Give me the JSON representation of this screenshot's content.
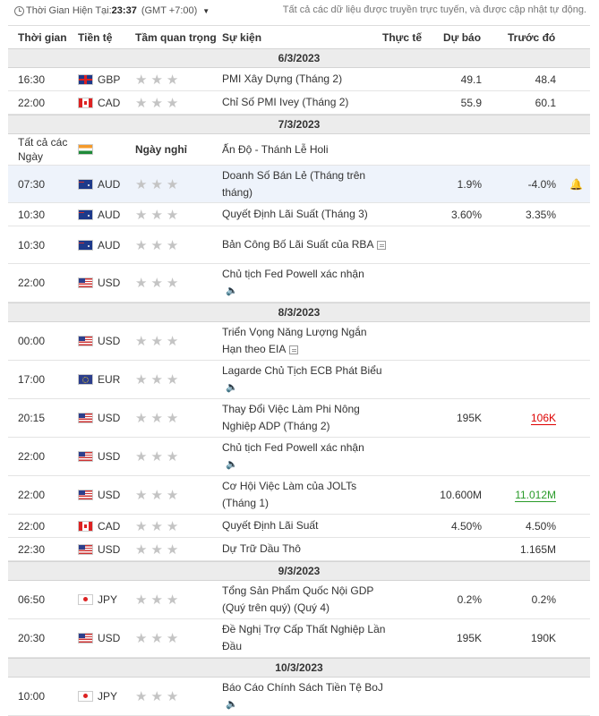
{
  "header": {
    "time_label": "Thời Gian Hiện Tại:",
    "time_value": "23:37",
    "timezone": "(GMT +7:00)",
    "note": "Tất cả các dữ liệu được truyền trực tuyến, và được cập nhật tự động."
  },
  "columns": {
    "time": "Thời gian",
    "currency": "Tiền tệ",
    "importance": "Tầm quan trọng",
    "event": "Sự kiện",
    "actual": "Thực tế",
    "forecast": "Dự báo",
    "previous": "Trước đó"
  },
  "rows": [
    {
      "type": "date",
      "label": "6/3/2023"
    },
    {
      "type": "event",
      "time": "16:30",
      "flag": "gb",
      "currency": "GBP",
      "event": "PMI Xây Dựng (Tháng 2)",
      "forecast": "49.1",
      "previous": "48.4"
    },
    {
      "type": "event",
      "time": "22:00",
      "flag": "ca",
      "currency": "CAD",
      "event": "Chỉ Số PMI Ivey (Tháng 2)",
      "forecast": "55.9",
      "previous": "60.1"
    },
    {
      "type": "date",
      "label": "7/3/2023"
    },
    {
      "type": "event",
      "time": "Tất cả các Ngày",
      "flag": "in",
      "currency": "",
      "holiday": "Ngày nghỉ",
      "event": "Ấn Độ - Thánh Lễ Holi",
      "h": 35
    },
    {
      "type": "event",
      "time": "07:30",
      "flag": "au",
      "currency": "AUD",
      "event": "Doanh Số Bán Lẻ (Tháng trên tháng)",
      "forecast": "1.9%",
      "previous": "-4.0%",
      "bell": true,
      "highlight": true,
      "h": 42
    },
    {
      "type": "event",
      "time": "10:30",
      "flag": "au",
      "currency": "AUD",
      "event": "Quyết Định Lãi Suất (Tháng 3)",
      "forecast": "3.60%",
      "previous": "3.35%"
    },
    {
      "type": "event",
      "time": "10:30",
      "flag": "au",
      "currency": "AUD",
      "event": "Bản Công Bố Lãi Suất của RBA",
      "icon": "doc",
      "h": 42
    },
    {
      "type": "event",
      "time": "22:00",
      "flag": "us",
      "currency": "USD",
      "event": "Chủ tịch Fed Powell xác nhận",
      "icon": "speaker",
      "h": 43
    },
    {
      "type": "date",
      "label": "8/3/2023"
    },
    {
      "type": "event",
      "time": "00:00",
      "flag": "us",
      "currency": "USD",
      "event": "Triển Vọng Năng Lượng Ngắn Hạn theo EIA",
      "icon": "doc",
      "h": 43
    },
    {
      "type": "event",
      "time": "17:00",
      "flag": "eu",
      "currency": "EUR",
      "event": "Lagarde Chủ Tịch ECB Phát Biểu",
      "icon": "speaker",
      "h": 43
    },
    {
      "type": "event",
      "time": "20:15",
      "flag": "us",
      "currency": "USD",
      "event": "Thay Đổi Việc Làm Phi Nông Nghiệp ADP (Tháng 2)",
      "forecast": "195K",
      "previous": "106K",
      "prevColor": "red",
      "h": 43
    },
    {
      "type": "event",
      "time": "22:00",
      "flag": "us",
      "currency": "USD",
      "event": "Chủ tịch Fed Powell xác nhận",
      "icon": "speaker",
      "h": 43
    },
    {
      "type": "event",
      "time": "22:00",
      "flag": "us",
      "currency": "USD",
      "event": "Cơ Hội Việc Làm của JOLTs (Tháng 1)",
      "forecast": "10.600M",
      "previous": "11.012M",
      "prevColor": "green",
      "h": 43
    },
    {
      "type": "event",
      "time": "22:00",
      "flag": "ca",
      "currency": "CAD",
      "event": "Quyết Định Lãi Suất",
      "forecast": "4.50%",
      "previous": "4.50%"
    },
    {
      "type": "event",
      "time": "22:30",
      "flag": "us",
      "currency": "USD",
      "event": "Dự Trữ Dầu Thô",
      "previous": "1.165M"
    },
    {
      "type": "date",
      "label": "9/3/2023"
    },
    {
      "type": "event",
      "time": "06:50",
      "flag": "jp",
      "currency": "JPY",
      "event": "Tổng Sản Phẩm Quốc Nội GDP (Quý trên quý) (Quý 4)",
      "forecast": "0.2%",
      "previous": "0.2%",
      "h": 43
    },
    {
      "type": "event",
      "time": "20:30",
      "flag": "us",
      "currency": "USD",
      "event": "Đề Nghị Trợ Cấp Thất Nghiệp Lần Đầu",
      "forecast": "195K",
      "previous": "190K",
      "h": 43
    },
    {
      "type": "date",
      "label": "10/3/2023"
    },
    {
      "type": "event",
      "time": "10:00",
      "flag": "jp",
      "currency": "JPY",
      "event": "Báo Cáo Chính Sách Tiền Tệ BoJ",
      "icon": "speaker",
      "h": 43
    }
  ]
}
